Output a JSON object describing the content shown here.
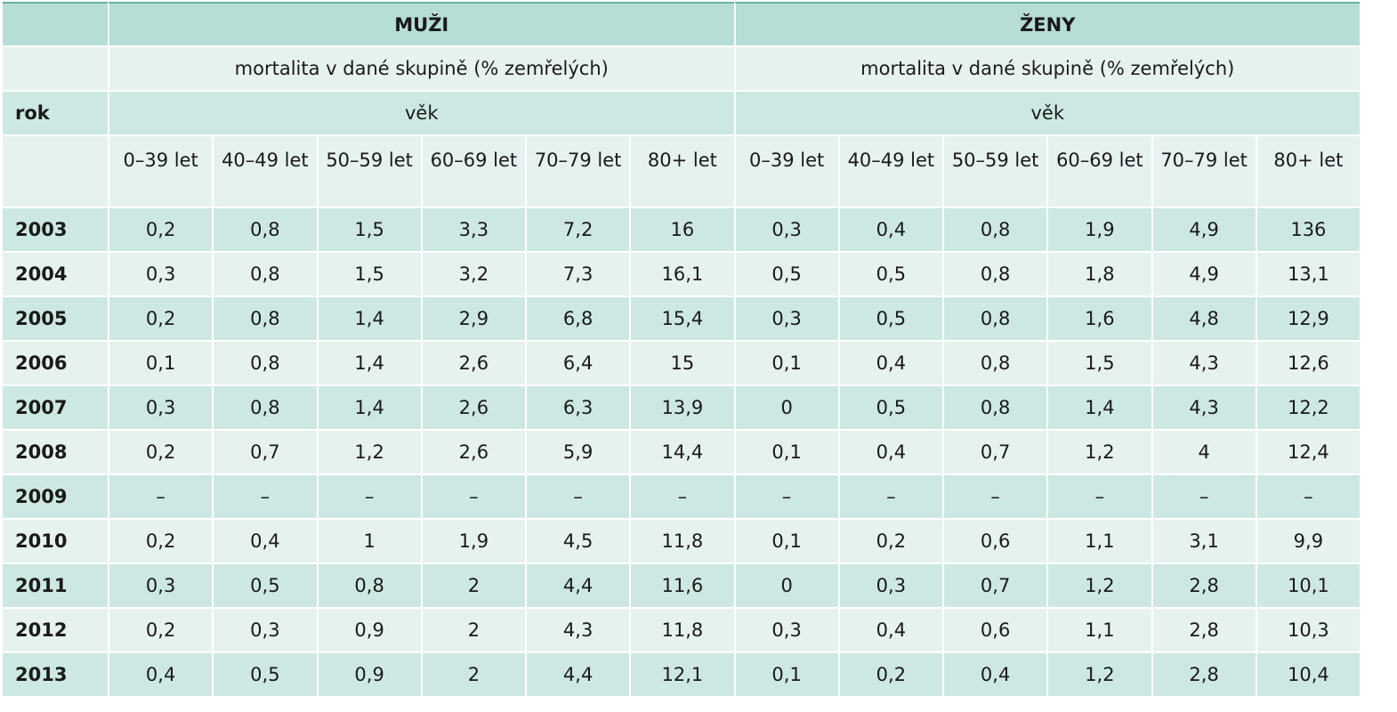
{
  "groups": [
    "MUŽI",
    "ŽENY"
  ],
  "subheader": "mortalita v dané skupině (% zemřelých)",
  "row_label": "rok",
  "age_label": "věk",
  "age_groups": [
    "0–39 let",
    "40–49 let",
    "50–59 let",
    "60–69 let",
    "70–79 let",
    "80+ let"
  ],
  "rows": [
    {
      "year": "2003",
      "muzi": [
        "0,2",
        "0,8",
        "1,5",
        "3,3",
        "7,2",
        "16"
      ],
      "zeny": [
        "0,3",
        "0,4",
        "0,8",
        "1,9",
        "4,9",
        "136"
      ]
    },
    {
      "year": "2004",
      "muzi": [
        "0,3",
        "0,8",
        "1,5",
        "3,2",
        "7,3",
        "16,1"
      ],
      "zeny": [
        "0,5",
        "0,5",
        "0,8",
        "1,8",
        "4,9",
        "13,1"
      ]
    },
    {
      "year": "2005",
      "muzi": [
        "0,2",
        "0,8",
        "1,4",
        "2,9",
        "6,8",
        "15,4"
      ],
      "zeny": [
        "0,3",
        "0,5",
        "0,8",
        "1,6",
        "4,8",
        "12,9"
      ]
    },
    {
      "year": "2006",
      "muzi": [
        "0,1",
        "0,8",
        "1,4",
        "2,6",
        "6,4",
        "15"
      ],
      "zeny": [
        "0,1",
        "0,4",
        "0,8",
        "1,5",
        "4,3",
        "12,6"
      ]
    },
    {
      "year": "2007",
      "muzi": [
        "0,3",
        "0,8",
        "1,4",
        "2,6",
        "6,3",
        "13,9"
      ],
      "zeny": [
        "0",
        "0,5",
        "0,8",
        "1,4",
        "4,3",
        "12,2"
      ]
    },
    {
      "year": "2008",
      "muzi": [
        "0,2",
        "0,7",
        "1,2",
        "2,6",
        "5,9",
        "14,4"
      ],
      "zeny": [
        "0,1",
        "0,4",
        "0,7",
        "1,2",
        "4",
        "12,4"
      ]
    },
    {
      "year": "2009",
      "muzi": [
        "–",
        "–",
        "–",
        "–",
        "–",
        "–"
      ],
      "zeny": [
        "–",
        "–",
        "–",
        "–",
        "–",
        "–"
      ]
    },
    {
      "year": "2010",
      "muzi": [
        "0,2",
        "0,4",
        "1",
        "1,9",
        "4,5",
        "11,8"
      ],
      "zeny": [
        "0,1",
        "0,2",
        "0,6",
        "1,1",
        "3,1",
        "9,9"
      ]
    },
    {
      "year": "2011",
      "muzi": [
        "0,3",
        "0,5",
        "0,8",
        "2",
        "4,4",
        "11,6"
      ],
      "zeny": [
        "0",
        "0,3",
        "0,7",
        "1,2",
        "2,8",
        "10,1"
      ]
    },
    {
      "year": "2012",
      "muzi": [
        "0,2",
        "0,3",
        "0,9",
        "2",
        "4,3",
        "11,8"
      ],
      "zeny": [
        "0,3",
        "0,4",
        "0,6",
        "1,1",
        "2,8",
        "10,3"
      ]
    },
    {
      "year": "2013",
      "muzi": [
        "0,4",
        "0,5",
        "0,9",
        "2",
        "4,4",
        "12,1"
      ],
      "zeny": [
        "0,1",
        "0,2",
        "0,4",
        "1,2",
        "2,8",
        "10,4"
      ]
    }
  ]
}
